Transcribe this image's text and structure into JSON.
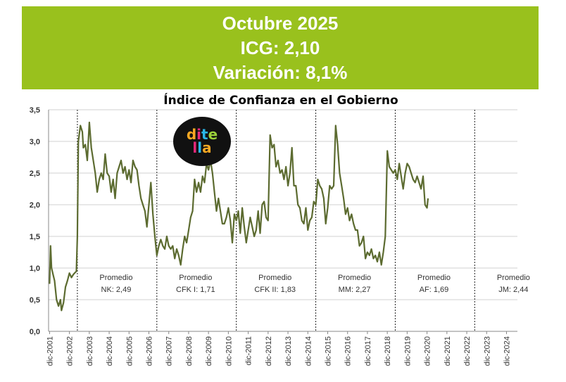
{
  "banner": {
    "line1": "Octubre 2025",
    "line2": "ICG: 2,10",
    "line3": "Variación: 8,1%",
    "color": "#99c11d"
  },
  "logo": {
    "text": "ditella",
    "icon": "di-tella-logo"
  },
  "chart_data": {
    "type": "line",
    "title": "Índice de Confianza en el Gobierno",
    "ylim": [
      0,
      3.5
    ],
    "yticks": [
      "0,0",
      "0,5",
      "1,0",
      "1,5",
      "2,0",
      "2,5",
      "3,0",
      "3,5"
    ],
    "xticks": [
      "dic-2001",
      "dic-2002",
      "dic-2003",
      "dic-2004",
      "dic-2005",
      "dic-2006",
      "dic-2007",
      "dic-2008",
      "dic-2009",
      "dic-2010",
      "dic-2011",
      "dic-2012",
      "dic-2013",
      "dic-2014",
      "dic-2015",
      "dic-2016",
      "dic-2017",
      "dic-2018",
      "dic-2019",
      "dic-2020",
      "dic-2021",
      "dic-2022",
      "dic-2023",
      "dic-2024"
    ],
    "grid": true,
    "line_color": "#5c6b30",
    "series": [
      {
        "values": [
          [
            2001.95,
            0.75
          ],
          [
            2002.0,
            1.35
          ],
          [
            2002.05,
            1.0
          ],
          [
            2002.2,
            0.8
          ],
          [
            2002.3,
            0.5
          ],
          [
            2002.4,
            0.4
          ],
          [
            2002.5,
            0.5
          ],
          [
            2002.55,
            0.33
          ],
          [
            2002.65,
            0.45
          ],
          [
            2002.75,
            0.7
          ],
          [
            2002.85,
            0.8
          ],
          [
            2002.95,
            0.92
          ],
          [
            2003.05,
            0.85
          ],
          [
            2003.15,
            0.9
          ],
          [
            2003.3,
            0.95
          ],
          [
            2003.35,
            1.5
          ],
          [
            2003.4,
            3.0
          ],
          [
            2003.5,
            3.25
          ],
          [
            2003.6,
            3.15
          ],
          [
            2003.65,
            2.9
          ],
          [
            2003.75,
            2.95
          ],
          [
            2003.85,
            2.7
          ],
          [
            2003.95,
            3.3
          ],
          [
            2004.05,
            2.9
          ],
          [
            2004.15,
            2.7
          ],
          [
            2004.25,
            2.5
          ],
          [
            2004.35,
            2.2
          ],
          [
            2004.45,
            2.4
          ],
          [
            2004.55,
            2.5
          ],
          [
            2004.65,
            2.4
          ],
          [
            2004.75,
            2.8
          ],
          [
            2004.85,
            2.5
          ],
          [
            2004.95,
            2.45
          ],
          [
            2005.05,
            2.2
          ],
          [
            2005.15,
            2.4
          ],
          [
            2005.25,
            2.1
          ],
          [
            2005.35,
            2.5
          ],
          [
            2005.45,
            2.6
          ],
          [
            2005.55,
            2.7
          ],
          [
            2005.65,
            2.5
          ],
          [
            2005.75,
            2.6
          ],
          [
            2005.85,
            2.4
          ],
          [
            2005.95,
            2.55
          ],
          [
            2006.05,
            2.35
          ],
          [
            2006.15,
            2.7
          ],
          [
            2006.25,
            2.6
          ],
          [
            2006.35,
            2.55
          ],
          [
            2006.45,
            2.3
          ],
          [
            2006.55,
            2.1
          ],
          [
            2006.65,
            2.0
          ],
          [
            2006.75,
            1.9
          ],
          [
            2006.85,
            1.65
          ],
          [
            2006.95,
            2.0
          ],
          [
            2007.05,
            2.35
          ],
          [
            2007.15,
            1.85
          ],
          [
            2007.25,
            1.5
          ],
          [
            2007.35,
            1.2
          ],
          [
            2007.45,
            1.35
          ],
          [
            2007.55,
            1.45
          ],
          [
            2007.65,
            1.35
          ],
          [
            2007.75,
            1.3
          ],
          [
            2007.85,
            1.5
          ],
          [
            2007.95,
            1.35
          ],
          [
            2008.05,
            1.3
          ],
          [
            2008.15,
            1.35
          ],
          [
            2008.25,
            1.15
          ],
          [
            2008.35,
            1.3
          ],
          [
            2008.45,
            1.2
          ],
          [
            2008.55,
            1.05
          ],
          [
            2008.65,
            1.3
          ],
          [
            2008.75,
            1.5
          ],
          [
            2008.85,
            1.4
          ],
          [
            2008.95,
            1.6
          ],
          [
            2009.05,
            1.8
          ],
          [
            2009.15,
            1.9
          ],
          [
            2009.25,
            2.4
          ],
          [
            2009.35,
            2.2
          ],
          [
            2009.45,
            2.35
          ],
          [
            2009.55,
            2.2
          ],
          [
            2009.65,
            2.45
          ],
          [
            2009.75,
            2.35
          ],
          [
            2009.85,
            2.65
          ],
          [
            2009.95,
            2.55
          ],
          [
            2010.05,
            2.7
          ],
          [
            2010.15,
            2.5
          ],
          [
            2010.25,
            2.2
          ],
          [
            2010.35,
            1.9
          ],
          [
            2010.45,
            2.1
          ],
          [
            2010.55,
            1.9
          ],
          [
            2010.65,
            1.7
          ],
          [
            2010.75,
            1.7
          ],
          [
            2010.85,
            1.8
          ],
          [
            2010.95,
            1.95
          ],
          [
            2011.05,
            1.75
          ],
          [
            2011.15,
            1.4
          ],
          [
            2011.25,
            1.85
          ],
          [
            2011.35,
            1.75
          ],
          [
            2011.45,
            1.9
          ],
          [
            2011.55,
            1.55
          ],
          [
            2011.65,
            1.95
          ],
          [
            2011.75,
            1.65
          ],
          [
            2011.85,
            1.4
          ],
          [
            2011.95,
            1.6
          ],
          [
            2012.05,
            1.8
          ],
          [
            2012.15,
            1.65
          ],
          [
            2012.25,
            1.5
          ],
          [
            2012.35,
            1.6
          ],
          [
            2012.45,
            1.9
          ],
          [
            2012.55,
            1.55
          ],
          [
            2012.65,
            2.0
          ],
          [
            2012.75,
            2.05
          ],
          [
            2012.85,
            1.8
          ],
          [
            2012.95,
            1.75
          ],
          [
            2013.05,
            3.1
          ],
          [
            2013.15,
            2.9
          ],
          [
            2013.25,
            2.95
          ],
          [
            2013.35,
            2.6
          ],
          [
            2013.45,
            2.7
          ],
          [
            2013.55,
            2.5
          ],
          [
            2013.65,
            2.55
          ],
          [
            2013.75,
            2.4
          ],
          [
            2013.85,
            2.6
          ],
          [
            2013.95,
            2.3
          ],
          [
            2014.05,
            2.5
          ],
          [
            2014.15,
            2.9
          ],
          [
            2014.25,
            2.3
          ],
          [
            2014.35,
            2.3
          ],
          [
            2014.45,
            2.0
          ],
          [
            2014.55,
            1.95
          ],
          [
            2014.65,
            1.75
          ],
          [
            2014.75,
            1.7
          ],
          [
            2014.85,
            1.95
          ],
          [
            2014.95,
            1.6
          ],
          [
            2015.05,
            1.75
          ],
          [
            2015.15,
            1.8
          ],
          [
            2015.25,
            2.05
          ],
          [
            2015.35,
            2.0
          ],
          [
            2015.45,
            2.4
          ],
          [
            2015.55,
            2.3
          ],
          [
            2015.65,
            2.25
          ],
          [
            2015.75,
            2.1
          ],
          [
            2015.85,
            1.7
          ],
          [
            2015.95,
            1.95
          ],
          [
            2016.05,
            2.3
          ],
          [
            2016.15,
            2.25
          ],
          [
            2016.25,
            2.3
          ],
          [
            2016.35,
            3.25
          ],
          [
            2016.45,
            2.95
          ],
          [
            2016.55,
            2.5
          ],
          [
            2016.65,
            2.3
          ],
          [
            2016.75,
            2.1
          ],
          [
            2016.85,
            1.85
          ],
          [
            2016.95,
            1.95
          ],
          [
            2017.05,
            1.75
          ],
          [
            2017.15,
            1.85
          ],
          [
            2017.25,
            1.7
          ],
          [
            2017.35,
            1.6
          ],
          [
            2017.45,
            1.6
          ],
          [
            2017.55,
            1.35
          ],
          [
            2017.65,
            1.4
          ],
          [
            2017.75,
            1.5
          ],
          [
            2017.85,
            1.15
          ],
          [
            2017.95,
            1.25
          ],
          [
            2018.05,
            1.2
          ],
          [
            2018.15,
            1.3
          ],
          [
            2018.25,
            1.15
          ],
          [
            2018.35,
            1.2
          ],
          [
            2018.45,
            1.1
          ],
          [
            2018.55,
            1.25
          ],
          [
            2018.65,
            1.05
          ],
          [
            2018.75,
            1.25
          ],
          [
            2018.85,
            1.5
          ],
          [
            2018.95,
            2.85
          ],
          [
            2019.05,
            2.6
          ],
          [
            2019.15,
            2.55
          ],
          [
            2019.25,
            2.5
          ],
          [
            2019.35,
            2.55
          ],
          [
            2019.45,
            2.4
          ],
          [
            2019.55,
            2.65
          ],
          [
            2019.65,
            2.45
          ],
          [
            2019.75,
            2.25
          ],
          [
            2019.85,
            2.5
          ],
          [
            2019.95,
            2.65
          ],
          [
            2020.05,
            2.6
          ],
          [
            2020.15,
            2.5
          ],
          [
            2020.25,
            2.4
          ],
          [
            2020.35,
            2.35
          ],
          [
            2020.45,
            2.45
          ],
          [
            2020.55,
            2.35
          ],
          [
            2020.65,
            2.25
          ],
          [
            2020.75,
            2.45
          ],
          [
            2020.85,
            2.0
          ],
          [
            2020.95,
            1.95
          ],
          [
            2021.0,
            2.1
          ]
        ]
      }
    ],
    "annotations": [
      {
        "line1": "Promedio",
        "line2": "NK: 2,49"
      },
      {
        "line1": "Promedio",
        "line2": "CFK I: 1,71"
      },
      {
        "line1": "Promedio",
        "line2": "CFK II: 1,83"
      },
      {
        "line1": "Promedio",
        "line2": "MM: 2,27"
      },
      {
        "line1": "Promedio",
        "line2": "AF: 1,69"
      },
      {
        "line1": "Promedio",
        "line2": "JM: 2,44"
      }
    ]
  }
}
